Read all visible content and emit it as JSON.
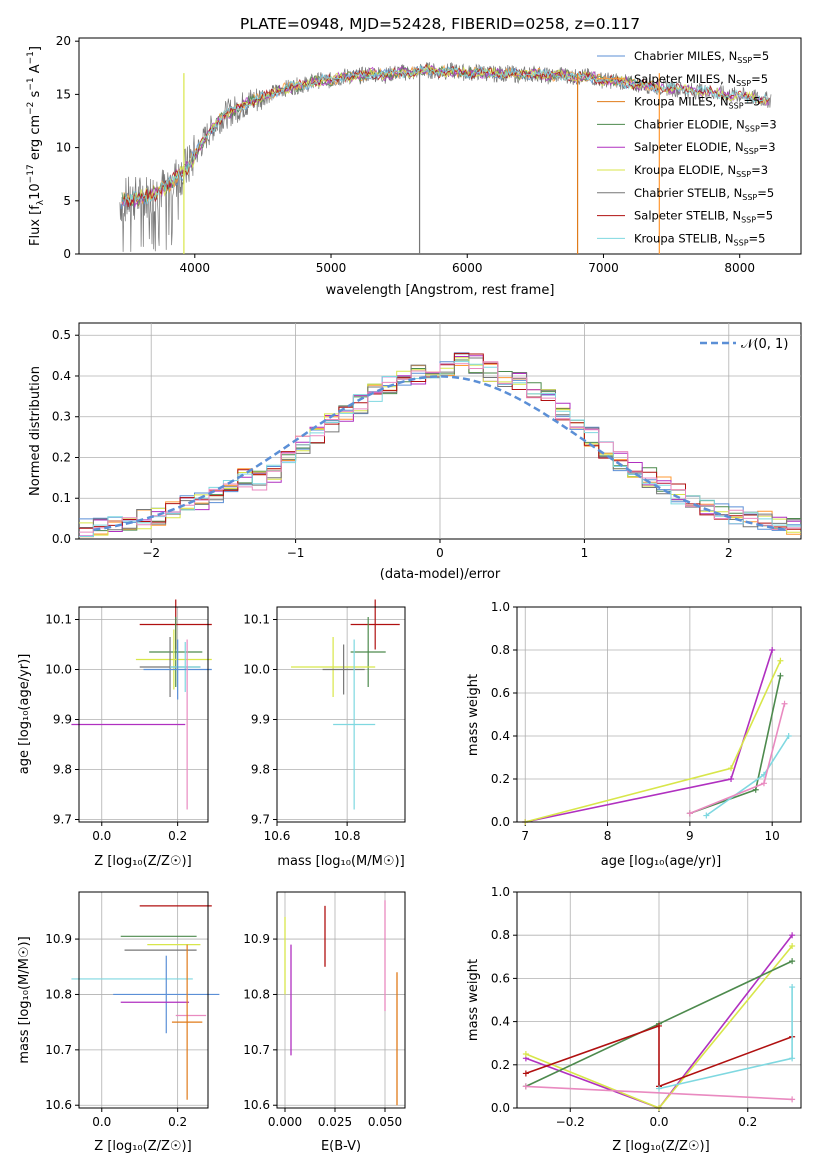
{
  "title": "PLATE=0948, MJD=52428, FIBERID=0258, z=0.117",
  "colors": {
    "chabrier_miles": "#5b8fd6",
    "salpeter_miles": "#ff9933",
    "kroupa_miles": "#e07b1a",
    "chabrier_elodie": "#4d8a4d",
    "salpeter_elodie": "#b030c0",
    "kroupa_elodie": "#d8e64a",
    "chabrier_stelib": "#777777",
    "salpeter_stelib": "#b01010",
    "kroupa_stelib": "#7fd8e0",
    "pink": "#e98ac0",
    "normal": "#5b8fd6"
  },
  "panels": {
    "spectrum": {
      "xlabel": "wavelength [Angstrom, rest frame]",
      "ylabel": "Flux [f_λ10^-17 erg cm^-2 s^-1 A^-1]",
      "xticks": [
        "4000",
        "5000",
        "6000",
        "7000",
        "8000"
      ],
      "yticks": [
        "0",
        "5",
        "10",
        "15",
        "20"
      ],
      "legend": [
        {
          "main": "Chabrier MILES, N",
          "sub": "SSP",
          "tail": "=5"
        },
        {
          "main": "Salpeter MILES, N",
          "sub": "SSP",
          "tail": "=5"
        },
        {
          "main": "Kroupa MILES, N",
          "sub": "SSP",
          "tail": "=5"
        },
        {
          "main": "Chabrier ELODIE, N",
          "sub": "SSP",
          "tail": "=3"
        },
        {
          "main": "Salpeter ELODIE, N",
          "sub": "SSP",
          "tail": "=3"
        },
        {
          "main": "Kroupa ELODIE, N",
          "sub": "SSP",
          "tail": "=3"
        },
        {
          "main": "Chabrier STELIB, N",
          "sub": "SSP",
          "tail": "=5"
        },
        {
          "main": "Salpeter STELIB, N",
          "sub": "SSP",
          "tail": "=5"
        },
        {
          "main": "Kroupa STELIB, N",
          "sub": "SSP",
          "tail": "=5"
        }
      ]
    },
    "residuals": {
      "xlabel": "(data-model)/error",
      "ylabel": "Normed distribution",
      "xticks": [
        "−2",
        "−1",
        "0",
        "1",
        "2"
      ],
      "yticks": [
        "0.0",
        "0.1",
        "0.2",
        "0.3",
        "0.4",
        "0.5"
      ],
      "legend_label": "𝒩(0, 1)"
    },
    "age_vs_z": {
      "xlabel": "Z [log₁₀(Z/Z☉)]",
      "ylabel": "age  [log₁₀(age/yr)]",
      "xticks": [
        "0.0",
        "0.2"
      ],
      "yticks": [
        "9.7",
        "9.8",
        "9.9",
        "10.0",
        "10.1"
      ]
    },
    "age_vs_mass": {
      "xlabel": "mass [log₁₀(M/M☉)]",
      "xticks": [
        "10.6",
        "10.8"
      ],
      "yticks": [
        "9.7",
        "9.8",
        "9.9",
        "10.0",
        "10.1"
      ]
    },
    "weight_vs_age": {
      "xlabel": "age  [log₁₀(age/yr)]",
      "ylabel": "mass weight",
      "xticks": [
        "7",
        "8",
        "9",
        "10"
      ],
      "yticks": [
        "0.0",
        "0.2",
        "0.4",
        "0.6",
        "0.8",
        "1.0"
      ]
    },
    "mass_vs_z": {
      "xlabel": "Z [log₁₀(Z/Z☉)]",
      "ylabel": "mass [log₁₀(M/M☉)]",
      "xticks": [
        "0.0",
        "0.2"
      ],
      "yticks": [
        "10.6",
        "10.7",
        "10.8",
        "10.9"
      ]
    },
    "mass_vs_ebv": {
      "xlabel": "E(B-V)",
      "xticks": [
        "0.000",
        "0.025",
        "0.050"
      ],
      "yticks": [
        "10.6",
        "10.7",
        "10.8",
        "10.9"
      ]
    },
    "weight_vs_z": {
      "xlabel": "Z [log₁₀(Z/Z☉)]",
      "ylabel": "mass weight",
      "xticks": [
        "−0.2",
        "0.0",
        "0.2"
      ],
      "yticks": [
        "0.0",
        "0.2",
        "0.4",
        "0.6",
        "0.8",
        "1.0"
      ]
    }
  },
  "chart_data": [
    {
      "type": "line",
      "title": "PLATE=0948, MJD=52428, FIBERID=0258, z=0.117",
      "xlabel": "wavelength [Angstrom, rest frame]",
      "ylabel": "Flux [fλ10^-17 erg cm^-2 s^-1 A^-1]",
      "xlim": [
        3150,
        8450
      ],
      "ylim": [
        0,
        20.3
      ],
      "series": [
        {
          "name": "Chabrier MILES, NSSP=5",
          "x": [
            3450,
            3500,
            3600,
            3700,
            3800,
            3900,
            3950,
            4000,
            4100,
            4200,
            4300,
            4400,
            4500,
            4600,
            4700,
            4800,
            4900,
            5000,
            5100,
            5200,
            5300,
            5400,
            5500,
            5600,
            5700,
            5800,
            5900,
            6000,
            6100,
            6200,
            6300,
            6400,
            6500,
            6600,
            6700,
            6800,
            6900,
            7000,
            7100,
            7200
          ],
          "y": [
            4.8,
            5.0,
            5.2,
            5.6,
            6.4,
            7.8,
            8.3,
            9.2,
            11.5,
            12.8,
            13.8,
            14.2,
            14.9,
            15.4,
            15.6,
            16.0,
            16.2,
            16.4,
            16.6,
            16.8,
            16.9,
            16.9,
            17.0,
            17.1,
            17.2,
            17.2,
            17.1,
            17.1,
            17.0,
            17.0,
            16.9,
            16.9,
            16.9,
            16.8,
            16.8,
            16.7,
            16.6,
            16.4,
            16.2,
            16.1
          ]
        },
        {
          "name": "Kroupa STELIB, NSSP=5",
          "x": [
            3450,
            3500,
            3600,
            3700,
            3800,
            3900,
            3950,
            4000,
            4100,
            4200,
            4300,
            4400,
            4500,
            4600,
            4700,
            4800,
            4900,
            5000,
            5100,
            5200,
            5300,
            5400,
            5500,
            5600,
            5700,
            5800,
            5900,
            6000,
            6100,
            6200,
            6300,
            6400,
            6500,
            6600,
            6700,
            6800,
            6900,
            7000,
            7100,
            7200,
            7300,
            7400,
            7500,
            7600,
            7700,
            7800,
            7900,
            8000,
            8100,
            8200
          ],
          "y": [
            4.9,
            5.1,
            5.3,
            5.7,
            6.4,
            7.6,
            8.1,
            9.3,
            11.4,
            12.9,
            13.6,
            14.3,
            14.7,
            15.3,
            15.7,
            15.9,
            16.3,
            16.3,
            16.7,
            16.7,
            17.0,
            16.8,
            17.1,
            17.0,
            17.3,
            17.1,
            17.2,
            17.0,
            17.1,
            16.9,
            17.0,
            16.8,
            17.0,
            16.7,
            16.9,
            16.6,
            16.7,
            16.3,
            16.3,
            16.0,
            15.9,
            15.7,
            15.6,
            15.4,
            15.3,
            15.2,
            15.0,
            14.9,
            14.7,
            14.5
          ]
        }
      ]
    },
    {
      "type": "line",
      "xlabel": "(data-model)/error",
      "ylabel": "Normed distribution",
      "xlim": [
        -2.5,
        2.5
      ],
      "ylim": [
        0,
        0.53
      ],
      "series": [
        {
          "name": "𝒩(0, 1)",
          "x": [
            -2.4,
            -2.0,
            -1.6,
            -1.2,
            -0.8,
            -0.4,
            0.0,
            0.4,
            0.8,
            1.2,
            1.6,
            2.0,
            2.4
          ],
          "y": [
            0.022,
            0.054,
            0.111,
            0.194,
            0.29,
            0.368,
            0.399,
            0.368,
            0.29,
            0.194,
            0.111,
            0.054,
            0.022
          ]
        },
        {
          "name": "",
          "x": [
            -2.4,
            -2.2,
            -2.0,
            -1.8,
            -1.6,
            -1.4,
            -1.2,
            -1.0,
            -0.8,
            -0.6,
            -0.4,
            -0.2,
            0.0,
            0.2,
            0.4,
            0.6,
            0.8,
            1.0,
            1.2,
            1.4,
            1.6,
            1.8,
            2.0,
            2.2,
            2.4
          ],
          "y": [
            0.03,
            0.04,
            0.05,
            0.08,
            0.1,
            0.15,
            0.14,
            0.22,
            0.27,
            0.32,
            0.37,
            0.4,
            0.42,
            0.44,
            0.4,
            0.38,
            0.33,
            0.27,
            0.2,
            0.16,
            0.12,
            0.08,
            0.06,
            0.05,
            0.03
          ]
        }
      ]
    },
    {
      "type": "scatter",
      "xlabel": "Z [log10(Z/Z⊙)]",
      "ylabel": "age [log10(age/yr)]",
      "xlim": [
        -0.06,
        0.28
      ],
      "ylim": [
        9.695,
        10.125
      ],
      "points": [
        {
          "x": 0.195,
          "y": 10.09,
          "xerr": 0.095,
          "yerr": 0.05
        },
        {
          "x": 0.195,
          "y": 10.035,
          "xerr": 0.07,
          "yerr": 0.07
        },
        {
          "x": 0.19,
          "y": 10.02,
          "xerr": 0.1,
          "yerr": 0.06
        },
        {
          "x": 0.18,
          "y": 10.005,
          "xerr": 0.08,
          "yerr": 0.06
        },
        {
          "x": 0.22,
          "y": 10.005,
          "xerr": 0.04,
          "yerr": 0.05
        },
        {
          "x": 0.2,
          "y": 10.0,
          "xerr": 0.09,
          "yerr": 0.06
        },
        {
          "x": 0.07,
          "y": 9.89,
          "xerr": 0.15,
          "yerr": 0.0
        },
        {
          "x": 0.225,
          "y": 9.89,
          "xerr": 0.0,
          "yerr": 0.17
        }
      ]
    },
    {
      "type": "scatter",
      "xlabel": "mass [log10(M/M⊙)]",
      "xlim": [
        10.6,
        10.965
      ],
      "ylim": [
        9.695,
        10.125
      ],
      "points": [
        {
          "x": 10.88,
          "y": 10.09,
          "xerr": 0.07,
          "yerr": 0.05
        },
        {
          "x": 10.86,
          "y": 10.035,
          "xerr": 0.05,
          "yerr": 0.07
        },
        {
          "x": 10.76,
          "y": 10.005,
          "xerr": 0.12,
          "yerr": 0.06
        },
        {
          "x": 10.79,
          "y": 10.0,
          "xerr": 0.06,
          "yerr": 0.05
        },
        {
          "x": 10.82,
          "y": 9.89,
          "xerr": 0.06,
          "yerr": 0.17
        }
      ]
    },
    {
      "type": "line",
      "xlabel": "age [log10(age/yr)]",
      "ylabel": "mass weight",
      "xlim": [
        6.9,
        10.35
      ],
      "ylim": [
        0,
        1.0
      ],
      "series": [
        {
          "name": "",
          "x": [
            7.0,
            9.5,
            10.0
          ],
          "y": [
            0.0,
            0.2,
            0.8
          ]
        },
        {
          "name": "",
          "x": [
            7.0,
            9.5,
            10.1
          ],
          "y": [
            0.0,
            0.25,
            0.75
          ]
        },
        {
          "name": "",
          "x": [
            9.0,
            9.8,
            10.1
          ],
          "y": [
            0.04,
            0.15,
            0.68
          ]
        },
        {
          "name": "",
          "x": [
            9.2,
            9.9,
            10.2
          ],
          "y": [
            0.03,
            0.22,
            0.4
          ]
        },
        {
          "name": "",
          "x": [
            9.0,
            9.9,
            10.15
          ],
          "y": [
            0.04,
            0.18,
            0.55
          ]
        }
      ]
    },
    {
      "type": "scatter",
      "xlabel": "Z [log10(Z/Z⊙)]",
      "ylabel": "mass [log10(M/M⊙)]",
      "xlim": [
        -0.06,
        0.28
      ],
      "ylim": [
        10.595,
        10.985
      ],
      "points": [
        {
          "x": 0.195,
          "y": 10.96,
          "xerr": 0.095,
          "yerr": 0.0
        },
        {
          "x": 0.15,
          "y": 10.905,
          "xerr": 0.1,
          "yerr": 0.0
        },
        {
          "x": 0.19,
          "y": 10.89,
          "xerr": 0.07,
          "yerr": 0.0
        },
        {
          "x": 0.155,
          "y": 10.88,
          "xerr": 0.095,
          "yerr": 0.0
        },
        {
          "x": 0.08,
          "y": 10.828,
          "xerr": 0.16,
          "yerr": 0.0
        },
        {
          "x": 0.17,
          "y": 10.8,
          "xerr": 0.14,
          "yerr": 0.07
        },
        {
          "x": 0.14,
          "y": 10.786,
          "xerr": 0.09,
          "yerr": 0.0
        },
        {
          "x": 0.235,
          "y": 10.762,
          "xerr": 0.04,
          "yerr": 0.0
        },
        {
          "x": 0.225,
          "y": 10.75,
          "xerr": 0.04,
          "yerr": 0.14
        }
      ]
    },
    {
      "type": "scatter",
      "xlabel": "E(B-V)",
      "xlim": [
        -0.004,
        0.06
      ],
      "ylim": [
        10.595,
        10.985
      ],
      "points": [
        {
          "x": 0.0,
          "y": 10.87,
          "yerr": 0.07
        },
        {
          "x": 0.003,
          "y": 10.79,
          "yerr": 0.1
        },
        {
          "x": 0.02,
          "y": 10.905,
          "yerr": 0.055
        },
        {
          "x": 0.05,
          "y": 10.87,
          "yerr": 0.1
        },
        {
          "x": 0.056,
          "y": 10.72,
          "yerr": 0.12
        }
      ]
    },
    {
      "type": "line",
      "xlabel": "Z [log10(Z/Z⊙)]",
      "ylabel": "mass weight",
      "xlim": [
        -0.32,
        0.32
      ],
      "ylim": [
        0,
        1.0
      ],
      "series": [
        {
          "name": "",
          "x": [
            -0.3,
            0.0,
            0.3
          ],
          "y": [
            0.23,
            0.0,
            0.8
          ]
        },
        {
          "name": "",
          "x": [
            -0.3,
            0.0,
            0.3
          ],
          "y": [
            0.25,
            0.0,
            0.75
          ]
        },
        {
          "name": "",
          "x": [
            -0.3,
            0.0,
            0.3
          ],
          "y": [
            0.1,
            0.39,
            0.68
          ]
        },
        {
          "name": "",
          "x": [
            -0.3,
            0.0,
            0.0,
            0.3
          ],
          "y": [
            0.16,
            0.38,
            0.1,
            0.33
          ]
        },
        {
          "name": "",
          "x": [
            -0.3,
            0.3
          ],
          "y": [
            0.1,
            0.04
          ]
        },
        {
          "name": "",
          "x": [
            0.0,
            0.3,
            0.3
          ],
          "y": [
            0.09,
            0.23,
            0.56
          ]
        }
      ]
    }
  ]
}
